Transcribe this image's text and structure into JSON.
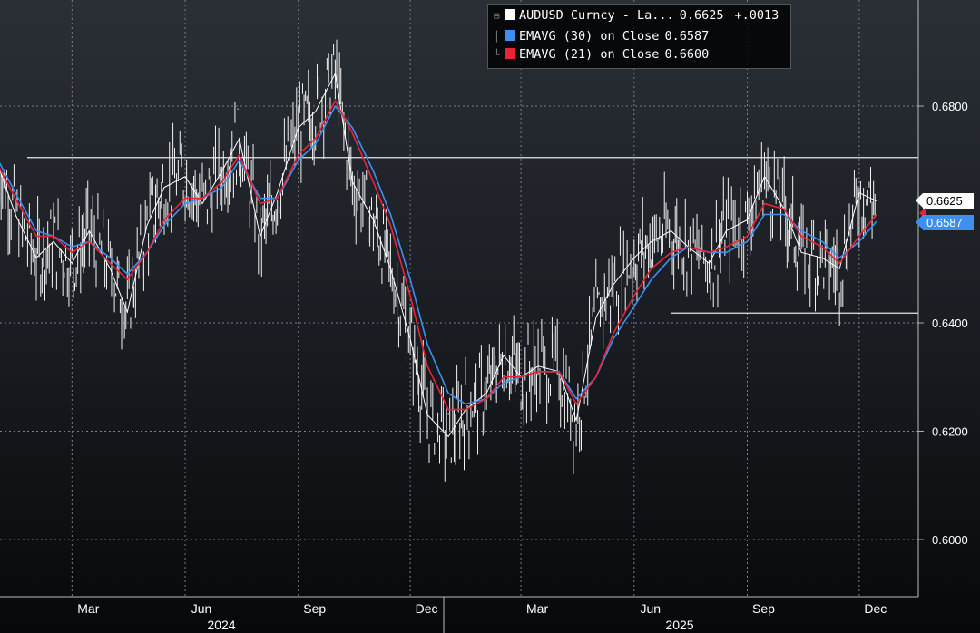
{
  "chart_data": {
    "type": "line",
    "ticker_label": "AUDUSD Curncy - La...",
    "y_ticks": [
      "0.6800",
      "0.6400",
      "0.6200",
      "0.6000"
    ],
    "x_ticks": [
      "Mar",
      "Jun",
      "Sep",
      "Dec",
      "Mar",
      "Jun",
      "Sep",
      "Dec"
    ],
    "years": [
      "2024",
      "2025"
    ],
    "ylim": [
      0.588,
      0.695
    ],
    "grid": true,
    "legend_position": "top-right",
    "horizontal_lines": [
      0.6705,
      0.6418
    ],
    "last_values": {
      "last": "0.6625",
      "ema30": "0.6587"
    },
    "series": [
      {
        "name": "AUDUSD Curncy - La...",
        "value_label": "0.6625",
        "change_label": "+.0013",
        "color": "#ffffff",
        "x": [
          "2024-01-01",
          "2024-01-15",
          "2024-02-01",
          "2024-02-15",
          "2024-03-01",
          "2024-03-15",
          "2024-04-01",
          "2024-04-15",
          "2024-05-01",
          "2024-05-15",
          "2024-06-01",
          "2024-06-15",
          "2024-07-01",
          "2024-07-15",
          "2024-08-01",
          "2024-08-15",
          "2024-09-01",
          "2024-09-15",
          "2024-10-01",
          "2024-10-15",
          "2024-11-01",
          "2024-11-15",
          "2024-12-01",
          "2024-12-15",
          "2025-01-01",
          "2025-01-15",
          "2025-02-01",
          "2025-02-15",
          "2025-03-01",
          "2025-03-15",
          "2025-04-01",
          "2025-04-15",
          "2025-05-01",
          "2025-05-15",
          "2025-06-01",
          "2025-06-15",
          "2025-07-01",
          "2025-07-15",
          "2025-08-01",
          "2025-08-15",
          "2025-09-01",
          "2025-09-15",
          "2025-10-01",
          "2025-10-15",
          "2025-11-01",
          "2025-11-15",
          "2025-12-01",
          "2025-12-15"
        ],
        "values": [
          0.669,
          0.66,
          0.652,
          0.655,
          0.651,
          0.657,
          0.65,
          0.642,
          0.658,
          0.665,
          0.667,
          0.662,
          0.668,
          0.674,
          0.656,
          0.664,
          0.676,
          0.679,
          0.686,
          0.666,
          0.659,
          0.65,
          0.637,
          0.623,
          0.619,
          0.624,
          0.627,
          0.634,
          0.63,
          0.632,
          0.631,
          0.622,
          0.641,
          0.647,
          0.652,
          0.655,
          0.657,
          0.654,
          0.651,
          0.657,
          0.659,
          0.667,
          0.661,
          0.653,
          0.652,
          0.65,
          0.664,
          0.6625
        ]
      },
      {
        "name": "EMAVG (30)  on Close",
        "value_label": "0.6587",
        "color": "#3d8ff0",
        "x": [
          "2024-01-01",
          "2024-01-15",
          "2024-02-01",
          "2024-02-15",
          "2024-03-01",
          "2024-03-15",
          "2024-04-01",
          "2024-04-15",
          "2024-05-01",
          "2024-05-15",
          "2024-06-01",
          "2024-06-15",
          "2024-07-01",
          "2024-07-15",
          "2024-08-01",
          "2024-08-15",
          "2024-09-01",
          "2024-09-15",
          "2024-10-01",
          "2024-10-15",
          "2024-11-01",
          "2024-11-15",
          "2024-12-01",
          "2024-12-15",
          "2025-01-01",
          "2025-01-15",
          "2025-02-01",
          "2025-02-15",
          "2025-03-01",
          "2025-03-15",
          "2025-04-01",
          "2025-04-15",
          "2025-05-01",
          "2025-05-15",
          "2025-06-01",
          "2025-06-15",
          "2025-07-01",
          "2025-07-15",
          "2025-08-01",
          "2025-08-15",
          "2025-09-01",
          "2025-09-15",
          "2025-10-01",
          "2025-10-15",
          "2025-11-01",
          "2025-11-15",
          "2025-12-01",
          "2025-12-15"
        ],
        "values": [
          0.67,
          0.664,
          0.657,
          0.656,
          0.654,
          0.655,
          0.652,
          0.649,
          0.653,
          0.658,
          0.662,
          0.663,
          0.665,
          0.67,
          0.663,
          0.663,
          0.67,
          0.673,
          0.68,
          0.676,
          0.668,
          0.66,
          0.648,
          0.636,
          0.627,
          0.625,
          0.626,
          0.629,
          0.63,
          0.631,
          0.631,
          0.626,
          0.63,
          0.637,
          0.643,
          0.648,
          0.652,
          0.654,
          0.653,
          0.653,
          0.655,
          0.66,
          0.66,
          0.657,
          0.655,
          0.652,
          0.655,
          0.6587
        ]
      },
      {
        "name": "EMAVG (21)  on Close",
        "value_label": "0.6600",
        "color": "#e8243a",
        "x": [
          "2024-01-01",
          "2024-01-15",
          "2024-02-01",
          "2024-02-15",
          "2024-03-01",
          "2024-03-15",
          "2024-04-01",
          "2024-04-15",
          "2024-05-01",
          "2024-05-15",
          "2024-06-01",
          "2024-06-15",
          "2024-07-01",
          "2024-07-15",
          "2024-08-01",
          "2024-08-15",
          "2024-09-01",
          "2024-09-15",
          "2024-10-01",
          "2024-10-15",
          "2024-11-01",
          "2024-11-15",
          "2024-12-01",
          "2024-12-15",
          "2025-01-01",
          "2025-01-15",
          "2025-02-01",
          "2025-02-15",
          "2025-03-01",
          "2025-03-15",
          "2025-04-01",
          "2025-04-15",
          "2025-05-01",
          "2025-05-15",
          "2025-06-01",
          "2025-06-15",
          "2025-07-01",
          "2025-07-15",
          "2025-08-01",
          "2025-08-15",
          "2025-09-01",
          "2025-09-15",
          "2025-10-01",
          "2025-10-15",
          "2025-11-01",
          "2025-11-15",
          "2025-12-01",
          "2025-12-15"
        ],
        "values": [
          0.669,
          0.663,
          0.656,
          0.656,
          0.653,
          0.655,
          0.651,
          0.648,
          0.653,
          0.659,
          0.663,
          0.663,
          0.666,
          0.671,
          0.662,
          0.663,
          0.671,
          0.674,
          0.681,
          0.675,
          0.666,
          0.658,
          0.645,
          0.632,
          0.624,
          0.624,
          0.626,
          0.63,
          0.63,
          0.631,
          0.631,
          0.625,
          0.63,
          0.638,
          0.645,
          0.65,
          0.653,
          0.654,
          0.653,
          0.654,
          0.656,
          0.662,
          0.661,
          0.656,
          0.654,
          0.651,
          0.656,
          0.66
        ]
      }
    ]
  }
}
